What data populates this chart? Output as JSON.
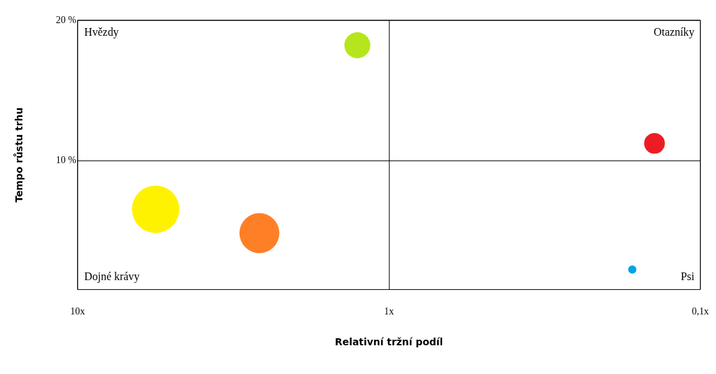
{
  "chart_data": {
    "type": "bubble",
    "xlabel": "Relativní tržní podíl",
    "ylabel": "Tempo růstu trhu",
    "annotations": [
      "Hvězdy",
      "Otazníky",
      "Dojné krávy",
      "Psi"
    ],
    "x": [
      1.26,
      5.6,
      2.6,
      0.14,
      0.165
    ],
    "series": [
      {
        "values": [
          18.2,
          6.5,
          4.8,
          11.2,
          2.2
        ],
        "sizes": [
          0.3,
          1,
          0.71,
          0.19,
          0.03
        ],
        "colors": [
          "#b5e61d",
          "#fff200",
          "#ff7f27",
          "#ed1c24",
          "#00a2e8"
        ]
      }
    ],
    "log": "x",
    "xlim": [
      10,
      0.1
    ],
    "xticks": [
      {
        "value": 10,
        "label": "10x"
      },
      {
        "value": 1,
        "label": "1x"
      },
      {
        "value": 0.1,
        "label": "0,1x"
      }
    ],
    "ylim": [
      0.8,
      20
    ],
    "yticks": [
      {
        "value": 10,
        "label": "10 %"
      },
      {
        "value": 20,
        "label": "20 %"
      }
    ],
    "grid": true
  }
}
